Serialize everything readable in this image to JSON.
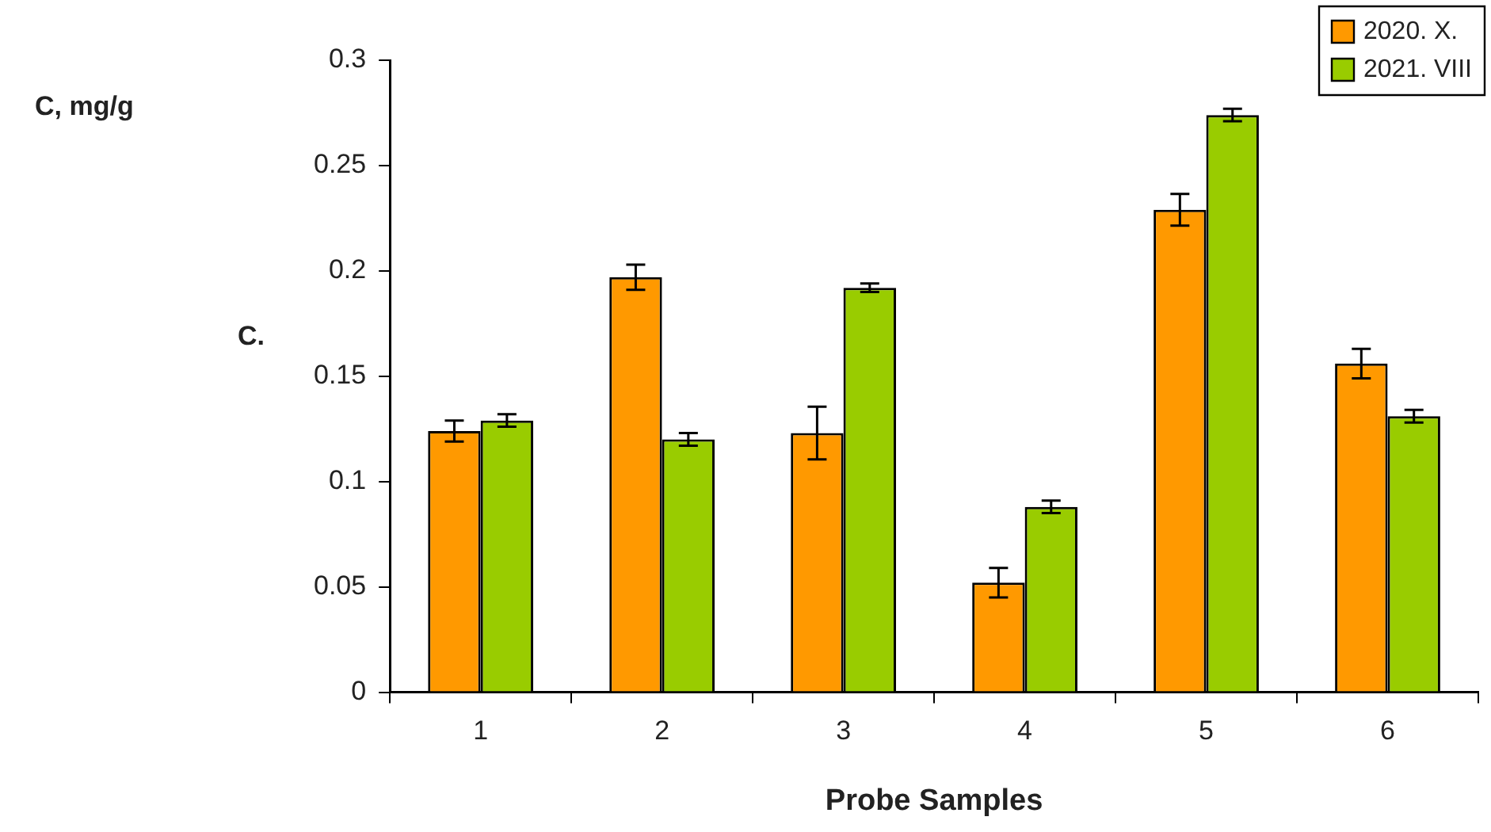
{
  "chart_data": {
    "type": "bar",
    "categories": [
      "1",
      "2",
      "3",
      "4",
      "5",
      "6"
    ],
    "series": [
      {
        "name": "2020. X.",
        "color": "#ff9900",
        "values": [
          0.124,
          0.197,
          0.123,
          0.052,
          0.229,
          0.156
        ],
        "errors": [
          0.005,
          0.006,
          0.0125,
          0.007,
          0.0075,
          0.007
        ]
      },
      {
        "name": "2021. VIII",
        "color": "#99cc00",
        "values": [
          0.129,
          0.12,
          0.192,
          0.088,
          0.274,
          0.131
        ],
        "errors": [
          0.003,
          0.003,
          0.002,
          0.003,
          0.003,
          0.003
        ]
      }
    ],
    "xlabel": "Probe Samples",
    "annotations": [
      "C, mg/g",
      "C."
    ],
    "ylim": [
      0,
      0.3
    ],
    "yticks": [
      0,
      0.05,
      0.1,
      0.15,
      0.2,
      0.25,
      0.3
    ],
    "grid": false,
    "legend": "top right"
  }
}
